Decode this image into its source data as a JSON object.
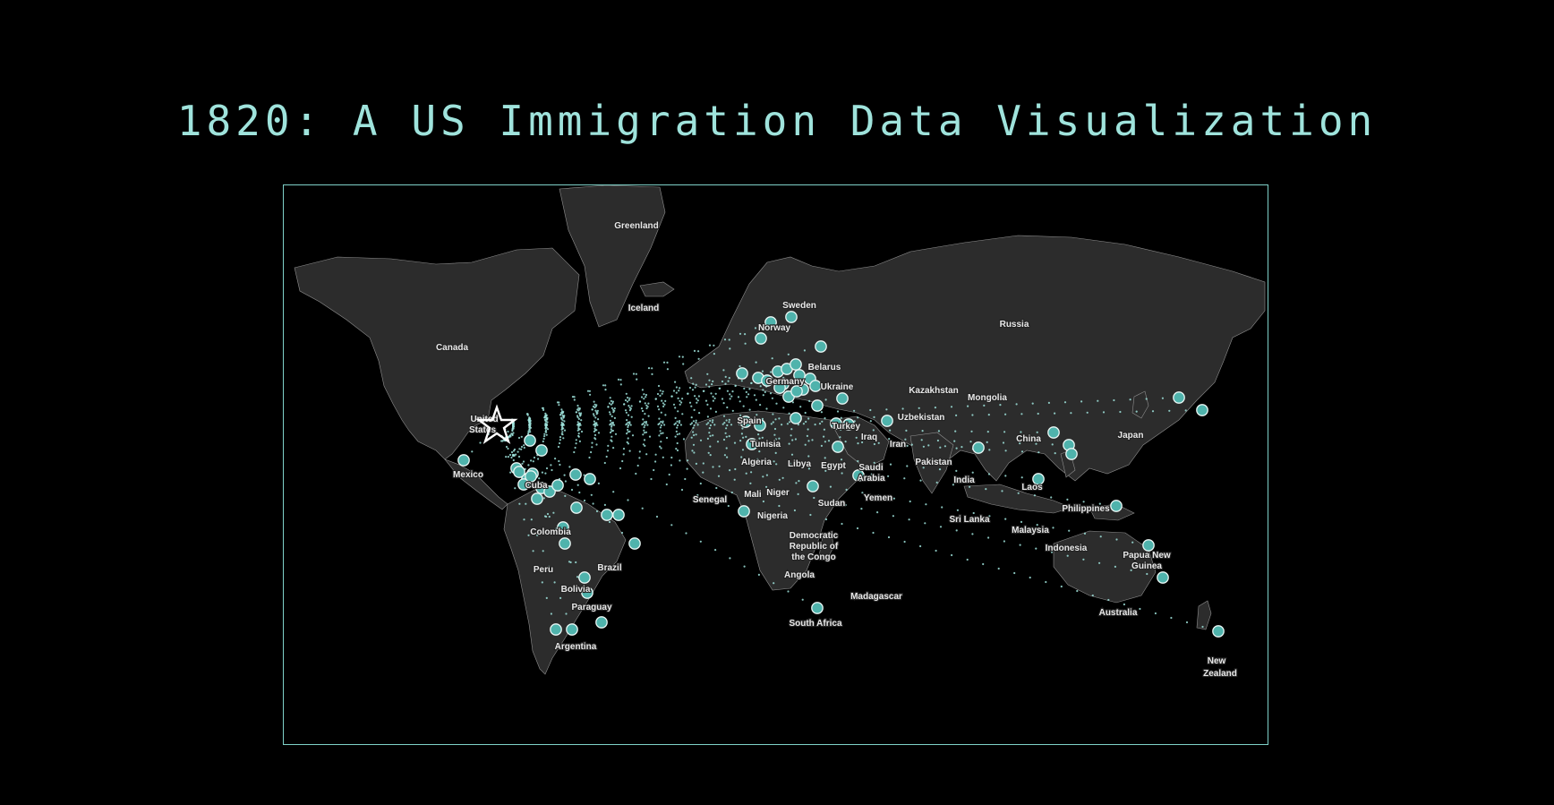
{
  "title": "1820: A US Immigration Data Visualization",
  "colors": {
    "accent": "#9fe3dc",
    "marker": "#4fb3ac",
    "land": "#2c2c2c",
    "ocean": "#000000",
    "border": "#9a9a9a"
  },
  "destination": {
    "icon": "star-icon",
    "country": "United States"
  },
  "labels": [
    "Greenland",
    "Iceland",
    "Canada",
    "Sweden",
    "Norway",
    "Russia",
    "Belarus",
    "Ukraine",
    "Kazakhstan",
    "Mongolia",
    "Uzbekistan",
    "Turkey",
    "Iraq",
    "Iran",
    "China",
    "Japan",
    "Spain",
    "Tunisia",
    "Algeria",
    "Libya",
    "Egypt",
    "Saudi",
    "Arabia",
    "Pakistan",
    "India",
    "Mexico",
    "Mali",
    "Niger",
    "Senegal",
    "Nigeria",
    "Sudan",
    "Yemen",
    "Laos",
    "Philippines",
    "Sri Lanka",
    "Malaysia",
    "Indonesia",
    "Papua New",
    "Guinea",
    "Colombia",
    "Democratic",
    "Republic of",
    "the Congo",
    "Brazil",
    "Peru",
    "Angola",
    "Madagascar",
    "Bolivia",
    "Paraguay",
    "Australia",
    "South Africa",
    "Argentina",
    "New",
    "Zealand",
    "United",
    "States",
    "Cuba",
    "Germany"
  ]
}
